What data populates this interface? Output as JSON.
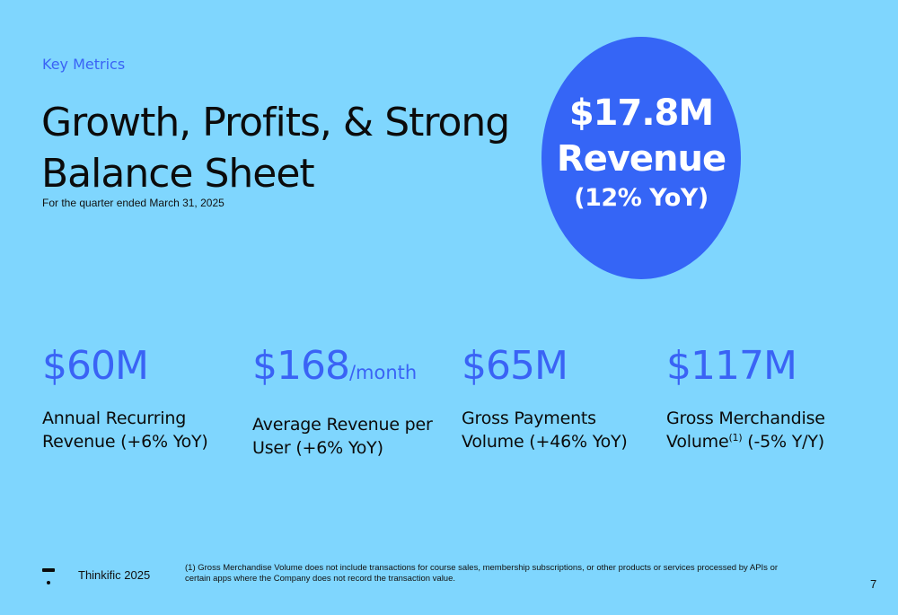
{
  "header": {
    "eyebrow": "Key Metrics",
    "title": "Growth, Profits, & Strong Balance Sheet",
    "subtitle": "For the quarter ended March 31, 2025"
  },
  "highlight": {
    "value": "$17.8M",
    "label": "Revenue",
    "change": "(12% YoY)"
  },
  "metrics": [
    {
      "value": "$60M",
      "unit": "",
      "label": "Annual Recurring Revenue (+6% YoY)"
    },
    {
      "value": "$168",
      "unit": "/month",
      "label": "Average Revenue per User (+6% YoY)"
    },
    {
      "value": "$65M",
      "unit": "",
      "label": "Gross Payments Volume (+46% YoY)"
    },
    {
      "value": "$117M",
      "unit": "",
      "label_pre": "Gross Merchandise Volume",
      "label_sup": "(1)",
      "label_post": " (-5% Y/Y)"
    }
  ],
  "footer": {
    "brand": "Thinkific 2025",
    "footnote": "(1)  Gross Merchandise Volume does not include transactions for course sales, membership subscriptions, or other products or services processed by APIs or certain apps where the Company does not record the transaction value.",
    "page_number": "7"
  },
  "colors": {
    "background": "#7fd6fe",
    "accent": "#3a63f5",
    "circle": "#3565f6"
  },
  "icons": {
    "logo": "thinkific-logo-icon"
  }
}
